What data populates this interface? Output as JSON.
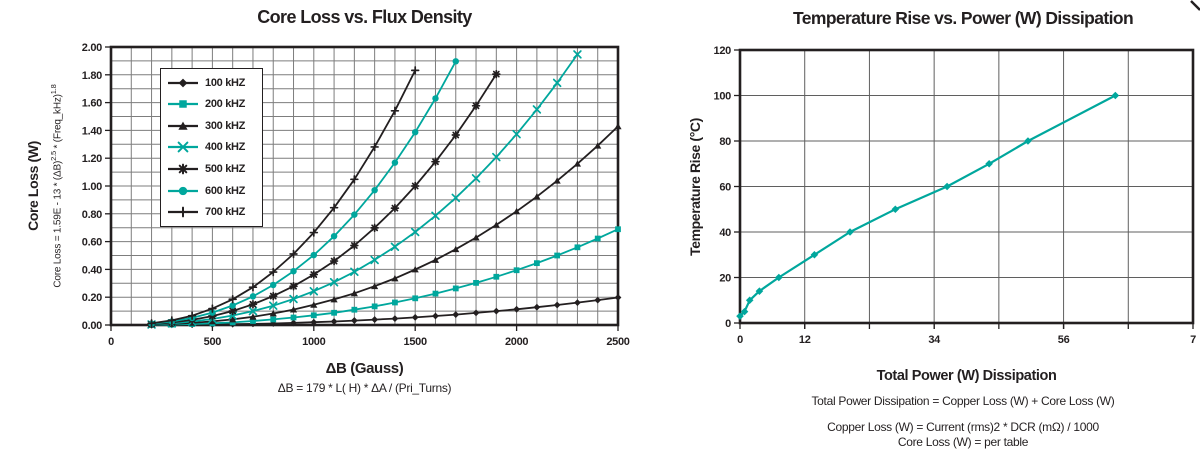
{
  "colors": {
    "black": "#231f20",
    "teal": "#00a79d",
    "grid_left": "#7d7d7d",
    "grid_right": "#5f5f5f",
    "background": "#ffffff"
  },
  "chart_data": [
    {
      "type": "line",
      "title": "Core Loss vs. Flux Density",
      "xlabel": "ΔB (Gauss)",
      "ylabel": "Core Loss (W)",
      "y_formula": {
        "base1": "Core Loss = 1.59E - 13 * (ΔB)",
        "sup1": "2.5",
        "base2": " * (Freq_kHz)",
        "sup2": "1.8"
      },
      "x_formula": "ΔB = 179 * L( H) * ΔA / (Pri_Turns)",
      "xlim": [
        0,
        2500
      ],
      "ylim": [
        0,
        2.0
      ],
      "x_minor_step": 100,
      "y_minor_step": 0.1,
      "grid": true,
      "legend_position": "upper-left-inside",
      "x_ticks": [
        {
          "v": 0,
          "label": "0"
        },
        {
          "v": 500,
          "label": "500"
        },
        {
          "v": 1000,
          "label": "1000"
        },
        {
          "v": 1500,
          "label": "1500"
        },
        {
          "v": 2000,
          "label": "2000"
        },
        {
          "v": 2500,
          "label": "2500"
        }
      ],
      "y_ticks": [
        {
          "v": 0.0,
          "label": "0.00"
        },
        {
          "v": 0.2,
          "label": "0.20"
        },
        {
          "v": 0.4,
          "label": "0.40"
        },
        {
          "v": 0.6,
          "label": "0.60"
        },
        {
          "v": 0.8,
          "label": "0.80"
        },
        {
          "v": 1.0,
          "label": "1.00"
        },
        {
          "v": 1.2,
          "label": "1.20"
        },
        {
          "v": 1.4,
          "label": "1.40"
        },
        {
          "v": 1.6,
          "label": "1.60"
        },
        {
          "v": 1.8,
          "label": "1.80"
        },
        {
          "v": 2.0,
          "label": "2.00"
        }
      ],
      "series": [
        {
          "name": "100 kHZ",
          "color": "black",
          "marker": "diamond",
          "x_start": 200,
          "x_step": 100,
          "values": [
            0.0,
            0.001,
            0.002,
            0.004,
            0.006,
            0.008,
            0.011,
            0.015,
            0.02,
            0.025,
            0.032,
            0.039,
            0.046,
            0.055,
            0.065,
            0.075,
            0.087,
            0.1,
            0.113,
            0.128,
            0.144,
            0.161,
            0.179,
            0.198
          ]
        },
        {
          "name": "200 kHZ",
          "color": "teal",
          "marker": "square",
          "x_start": 200,
          "x_step": 100,
          "values": [
            0.001,
            0.003,
            0.007,
            0.012,
            0.019,
            0.029,
            0.04,
            0.054,
            0.07,
            0.088,
            0.11,
            0.134,
            0.162,
            0.192,
            0.226,
            0.263,
            0.303,
            0.347,
            0.394,
            0.445,
            0.5,
            0.559,
            0.622,
            0.689
          ]
        },
        {
          "name": "300 kHZ",
          "color": "black",
          "marker": "triangle",
          "x_start": 200,
          "x_step": 100,
          "values": [
            0.003,
            0.007,
            0.015,
            0.026,
            0.04,
            0.059,
            0.083,
            0.111,
            0.145,
            0.184,
            0.228,
            0.279,
            0.335,
            0.399,
            0.468,
            0.545,
            0.629,
            0.72,
            0.818,
            0.924,
            1.038,
            1.16,
            1.29,
            1.429
          ]
        },
        {
          "name": "400 kHZ",
          "color": "teal",
          "marker": "x",
          "x_start": 200,
          "x_step": 100,
          "values": [
            0.004,
            0.012,
            0.025,
            0.043,
            0.068,
            0.1,
            0.139,
            0.187,
            0.243,
            0.308,
            0.383,
            0.468,
            0.563,
            0.669,
            0.786,
            0.915,
            1.055,
            1.208,
            1.373,
            1.551,
            1.742,
            1.947
          ]
        },
        {
          "name": "500 kHZ",
          "color": "black",
          "marker": "asterisk",
          "x_start": 200,
          "x_step": 100,
          "values": [
            0.006,
            0.018,
            0.037,
            0.064,
            0.101,
            0.149,
            0.208,
            0.279,
            0.363,
            0.46,
            0.572,
            0.699,
            0.841,
            1.0,
            1.175,
            1.367,
            1.577,
            1.805
          ]
        },
        {
          "name": "600 kHZ",
          "color": "teal",
          "marker": "circle",
          "x_start": 200,
          "x_step": 100,
          "values": [
            0.009,
            0.025,
            0.051,
            0.089,
            0.14,
            0.206,
            0.288,
            0.387,
            0.503,
            0.639,
            0.794,
            0.97,
            1.168,
            1.387,
            1.63,
            1.897
          ]
        },
        {
          "name": "700 kHZ",
          "color": "black",
          "marker": "plus",
          "x_start": 200,
          "x_step": 100,
          "values": [
            0.012,
            0.033,
            0.067,
            0.118,
            0.185,
            0.272,
            0.381,
            0.511,
            0.665,
            0.844,
            1.048,
            1.281,
            1.541,
            1.832
          ]
        }
      ]
    },
    {
      "type": "line",
      "title": "Temperature Rise vs. Power (W) Dissipation",
      "xlabel": "Total Power (W) Dissipation",
      "ylabel": "Temperature Rise (°C)",
      "notes": [
        "Total Power Dissipation = Copper Loss (W) + Core Loss (W)",
        "Copper Loss (W) = Current (rms)2 * DCR (mΩ) / 1000",
        "Core Loss (W) = per table"
      ],
      "xlim": [
        0,
        7
      ],
      "ylim": [
        0,
        120
      ],
      "x_minor_step": 1,
      "y_minor_step": 20,
      "grid": true,
      "x_ticks": [
        {
          "v": 0,
          "label": "0"
        },
        {
          "v": 1,
          "label": "12"
        },
        {
          "v": 3,
          "label": "34"
        },
        {
          "v": 5,
          "label": "56"
        },
        {
          "v": 7,
          "label": "7"
        }
      ],
      "y_ticks": [
        {
          "v": 0,
          "label": "0"
        },
        {
          "v": 20,
          "label": "20"
        },
        {
          "v": 40,
          "label": "40"
        },
        {
          "v": 60,
          "label": "60"
        },
        {
          "v": 80,
          "label": "80"
        },
        {
          "v": 100,
          "label": "100"
        },
        {
          "v": 120,
          "label": "120"
        }
      ],
      "series": [
        {
          "name": "temperature-rise",
          "color": "teal",
          "marker": "diamond",
          "points": [
            [
              0,
              3
            ],
            [
              0.07,
              5
            ],
            [
              0.15,
              10
            ],
            [
              0.3,
              14
            ],
            [
              0.6,
              20
            ],
            [
              1.15,
              30
            ],
            [
              1.7,
              40
            ],
            [
              2.4,
              50
            ],
            [
              3.2,
              60
            ],
            [
              3.85,
              70
            ],
            [
              4.45,
              80
            ],
            [
              5.8,
              100
            ]
          ]
        }
      ]
    }
  ]
}
